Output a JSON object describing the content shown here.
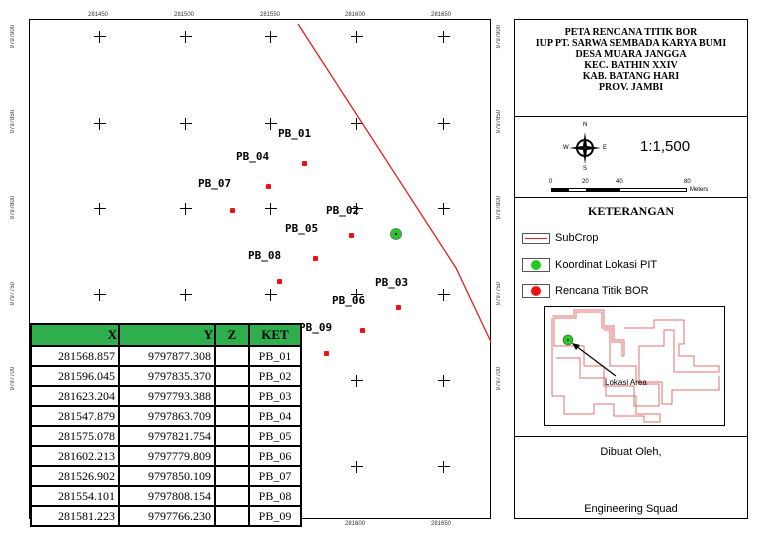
{
  "map": {
    "x_ticks": [
      "281450",
      "281500",
      "281550",
      "281600",
      "281650"
    ],
    "y_ticks": [
      "9797900",
      "9797850",
      "9797800",
      "9797750",
      "9797700"
    ],
    "points": [
      {
        "id": "PB_01",
        "x": 281568.857,
        "y": 9797877.308
      },
      {
        "id": "PB_02",
        "x": 281596.045,
        "y": 9797835.37
      },
      {
        "id": "PB_03",
        "x": 281623.204,
        "y": 9797793.388
      },
      {
        "id": "PB_04",
        "x": 281547.879,
        "y": 9797863.709
      },
      {
        "id": "PB_05",
        "x": 281575.078,
        "y": 9797821.754
      },
      {
        "id": "PB_06",
        "x": 281602.213,
        "y": 9797779.809
      },
      {
        "id": "PB_07",
        "x": 281526.902,
        "y": 9797850.109
      },
      {
        "id": "PB_08",
        "x": 281554.101,
        "y": 9797808.154
      },
      {
        "id": "PB_09",
        "x": 281581.223,
        "y": 9797766.23
      }
    ],
    "pit": {
      "x": 281622,
      "y": 9797836
    },
    "colors": {
      "subcrop": "#e02020",
      "bor": "#e11111",
      "pit": "#22cc22",
      "table_header": "#2fae4e"
    }
  },
  "table": {
    "headers": [
      "X",
      "Y",
      "Z",
      "KET"
    ],
    "rows": [
      [
        "281568.857",
        "9797877.308",
        "",
        "PB_01"
      ],
      [
        "281596.045",
        "9797835.370",
        "",
        "PB_02"
      ],
      [
        "281623.204",
        "9797793.388",
        "",
        "PB_03"
      ],
      [
        "281547.879",
        "9797863.709",
        "",
        "PB_04"
      ],
      [
        "281575.078",
        "9797821.754",
        "",
        "PB_05"
      ],
      [
        "281602.213",
        "9797779.809",
        "",
        "PB_06"
      ],
      [
        "281526.902",
        "9797850.109",
        "",
        "PB_07"
      ],
      [
        "281554.101",
        "9797808.154",
        "",
        "PB_08"
      ],
      [
        "281581.223",
        "9797766.230",
        "",
        "PB_09"
      ]
    ]
  },
  "panel": {
    "title_lines": [
      "PETA RENCANA TITIK BOR",
      "IUP PT. SARWA SEMBADA KARYA BUMI",
      "DESA MUARA JANGGA",
      "KEC. BATHIN XXIV",
      "KAB. BATANG HARI",
      "PROV. JAMBI"
    ],
    "scale": "1:1,500",
    "scalebar_ticks": [
      "0",
      "20",
      "40",
      "80"
    ],
    "scalebar_unit": "Meters",
    "north_letters": {
      "n": "N",
      "s": "S",
      "e": "E",
      "w": "W"
    },
    "legend_title": "KETERANGAN",
    "legend": {
      "subcrop": "SubCrop",
      "pit": "Koordinat Lokasi PIT",
      "bor": "Rencana Titik BOR"
    },
    "inset_label": "Lokasi Area",
    "made_by": "Dibuat Oleh,",
    "author": "Engineering Squad"
  }
}
